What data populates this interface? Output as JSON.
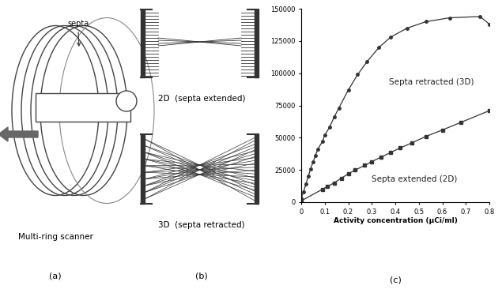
{
  "chart_data": {
    "type": "line",
    "x_label": "Activity concentration (µCi/ml)",
    "xlim": [
      0,
      0.8
    ],
    "xticks": [
      0,
      0.1,
      0.2,
      0.3,
      0.4,
      0.5,
      0.6,
      0.7,
      0.8
    ],
    "ylim": [
      0,
      150000
    ],
    "yticks": [
      0,
      25000,
      50000,
      75000,
      100000,
      125000,
      150000
    ],
    "grid": false,
    "series": [
      {
        "name": "Septa retracted (3D)",
        "color": "#333333",
        "marker": "circle",
        "line_style": "solid",
        "x": [
          0.0,
          0.01,
          0.02,
          0.03,
          0.04,
          0.05,
          0.06,
          0.07,
          0.09,
          0.1,
          0.12,
          0.14,
          0.16,
          0.2,
          0.24,
          0.28,
          0.33,
          0.38,
          0.45,
          0.53,
          0.63,
          0.76,
          0.8
        ],
        "values": [
          3000,
          8000,
          14000,
          20000,
          26000,
          31000,
          36000,
          41000,
          47000,
          52000,
          58000,
          66000,
          73000,
          87000,
          99000,
          109000,
          120000,
          128000,
          135000,
          140000,
          143000,
          144000,
          138000
        ]
      },
      {
        "name": "Septa extended (2D)",
        "color": "#333333",
        "marker": "square",
        "line_style": "solid",
        "x": [
          0.0,
          0.09,
          0.11,
          0.14,
          0.17,
          0.2,
          0.23,
          0.27,
          0.3,
          0.34,
          0.38,
          0.42,
          0.47,
          0.53,
          0.6,
          0.68,
          0.8
        ],
        "values": [
          1000,
          10000,
          12000,
          15000,
          18500,
          22000,
          25000,
          28500,
          31500,
          35000,
          38500,
          42000,
          46000,
          51000,
          56000,
          62000,
          71000
        ]
      }
    ]
  },
  "diagram": {
    "panel_a": {
      "label": "(a)",
      "septa": "septa",
      "caption": "Multi-ring scanner"
    },
    "panel_b": {
      "label": "(b)",
      "top": "2D  (septa extended)",
      "bottom": "3D  (septa retracted)"
    },
    "panel_c": {
      "label": "(c)"
    }
  }
}
